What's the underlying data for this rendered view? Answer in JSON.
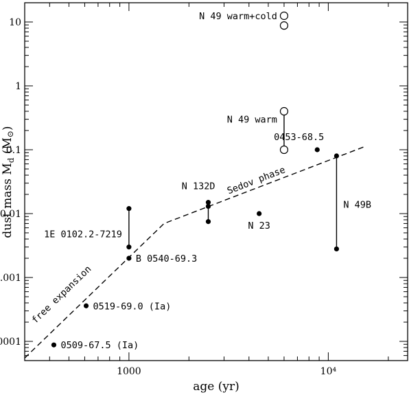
{
  "chart_data": {
    "type": "scatter",
    "xlabel": "age (yr)",
    "ylabel": "dust mass M",
    "ylabel_sub": "d",
    "ylabel_unit_open": " (M",
    "ylabel_unit_close": ")",
    "x_scale": "log",
    "y_scale": "log",
    "xlim": [
      300,
      25000
    ],
    "ylim": [
      5e-05,
      20
    ],
    "x_tick_labels": [
      {
        "value": 1000,
        "label": "1000"
      },
      {
        "value": 10000,
        "label": "10⁴"
      }
    ],
    "y_tick_labels": [
      {
        "value": 0.0001,
        "label": "0.0001"
      },
      {
        "value": 0.001,
        "label": "0.001"
      },
      {
        "value": 0.01,
        "label": "0.01"
      },
      {
        "value": 0.1,
        "label": "0.1"
      },
      {
        "value": 1,
        "label": "1"
      },
      {
        "value": 10,
        "label": "10"
      }
    ],
    "filled_points": [
      {
        "x": 420,
        "y": 8.8e-05
      },
      {
        "x": 610,
        "y": 0.00036
      },
      {
        "x": 1000,
        "y": 0.002
      },
      {
        "x": 1000,
        "y": 0.003
      },
      {
        "x": 1000,
        "y": 0.012
      },
      {
        "x": 2500,
        "y": 0.0075
      },
      {
        "x": 2500,
        "y": 0.013
      },
      {
        "x": 2500,
        "y": 0.015
      },
      {
        "x": 4500,
        "y": 0.01
      },
      {
        "x": 8800,
        "y": 0.1
      },
      {
        "x": 11000,
        "y": 0.0028
      },
      {
        "x": 11000,
        "y": 0.08
      }
    ],
    "open_points": [
      {
        "x": 6000,
        "y": 0.1
      },
      {
        "x": 6000,
        "y": 0.4
      },
      {
        "x": 6000,
        "y": 8.8
      },
      {
        "x": 6000,
        "y": 12.5
      }
    ],
    "ranges": [
      {
        "x": 1000,
        "y1": 0.003,
        "y2": 0.012
      },
      {
        "x": 2500,
        "y1": 0.0075,
        "y2": 0.015
      },
      {
        "x": 6000,
        "y1": 0.1,
        "y2": 0.4
      },
      {
        "x": 11000,
        "y1": 0.0028,
        "y2": 0.08
      }
    ],
    "model_line": {
      "style": "dashed",
      "points": [
        {
          "x": 300,
          "y": 5.5e-05
        },
        {
          "x": 1500,
          "y": 0.007
        },
        {
          "x": 15000,
          "y": 0.11
        }
      ]
    },
    "annotations": [
      {
        "text": "0509-67.5 (Ia)",
        "x": 420,
        "y": 8.8e-05,
        "anchor": "right-of"
      },
      {
        "text": "0519-69.0 (Ia)",
        "x": 610,
        "y": 0.00036,
        "anchor": "right-of"
      },
      {
        "text": "B 0540-69.3",
        "x": 1000,
        "y": 0.002,
        "anchor": "right-of"
      },
      {
        "text": "1E 0102.2-7219",
        "x": 1000,
        "y": 0.0048,
        "anchor": "left-of"
      },
      {
        "text": "N 132D",
        "x": 2500,
        "y": 0.017,
        "anchor": "above-left"
      },
      {
        "text": "N 23",
        "x": 4500,
        "y": 0.01,
        "anchor": "below"
      },
      {
        "text": "N 49B",
        "x": 11000,
        "y": 0.014,
        "anchor": "right-of"
      },
      {
        "text": "N 49 warm",
        "x": 6000,
        "y": 0.3,
        "anchor": "left-of"
      },
      {
        "text": "0453-68.5",
        "x": 8800,
        "y": 0.1,
        "anchor": "above-left"
      },
      {
        "text": "N 49 warm+cold",
        "x": 6000,
        "y": 12.5,
        "anchor": "left-of"
      },
      {
        "text": "free expansion",
        "x": 470,
        "y": 0.0005,
        "anchor": "along-line"
      },
      {
        "text": "Sedov phase",
        "x": 4400,
        "y": 0.03,
        "anchor": "along-line"
      }
    ]
  }
}
